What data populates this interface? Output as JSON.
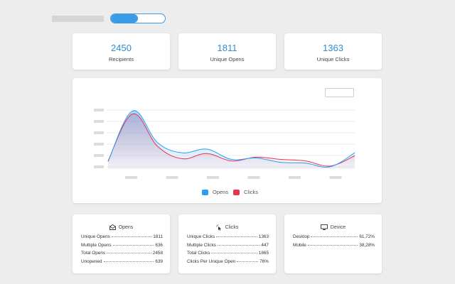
{
  "colors": {
    "opens": "#2a9df4",
    "clicks": "#e8344e",
    "accent": "#3a9be6"
  },
  "stats": [
    {
      "value": "2450",
      "label": "Recipients"
    },
    {
      "value": "1811",
      "label": "Unique Opens"
    },
    {
      "value": "1363",
      "label": "Unique Clicks"
    }
  ],
  "chart": {
    "legend": [
      {
        "name": "Opens",
        "color": "#2a9df4"
      },
      {
        "name": "Clicks",
        "color": "#e8344e"
      }
    ],
    "chart_data": {
      "type": "area",
      "title": "",
      "xlabel": "",
      "ylabel": "",
      "grid": true,
      "legend_position": "bottom",
      "series": [
        {
          "name": "Opens",
          "values": [
            20,
            158,
            72,
            44,
            54,
            26,
            30,
            18,
            16,
            6,
            44
          ]
        },
        {
          "name": "Clicks",
          "values": [
            22,
            150,
            62,
            28,
            42,
            22,
            32,
            26,
            22,
            8,
            36
          ]
        }
      ]
    }
  },
  "panels": {
    "opens": {
      "title": "Opens",
      "icon": "envelope-open-icon",
      "rows": [
        {
          "label": "Unique Opens",
          "value": "1811"
        },
        {
          "label": "Multiple Opens",
          "value": "636"
        },
        {
          "label": "Total Opens",
          "value": "2458"
        },
        {
          "label": "Unopened",
          "value": "639"
        }
      ]
    },
    "clicks": {
      "title": "Clicks",
      "icon": "cursor-click-icon",
      "rows": [
        {
          "label": "Unique Clicks",
          "value": "1363"
        },
        {
          "label": "Multiple Clicks",
          "value": "447"
        },
        {
          "label": "Total Clicks",
          "value": "1865"
        },
        {
          "label": "Clicks Per Unique Open",
          "value": "76%"
        }
      ]
    },
    "device": {
      "title": "Device",
      "icon": "monitor-icon",
      "rows": [
        {
          "label": "Desktop",
          "value": "61,72%"
        },
        {
          "label": "Mobile",
          "value": "38,28%"
        }
      ]
    }
  }
}
